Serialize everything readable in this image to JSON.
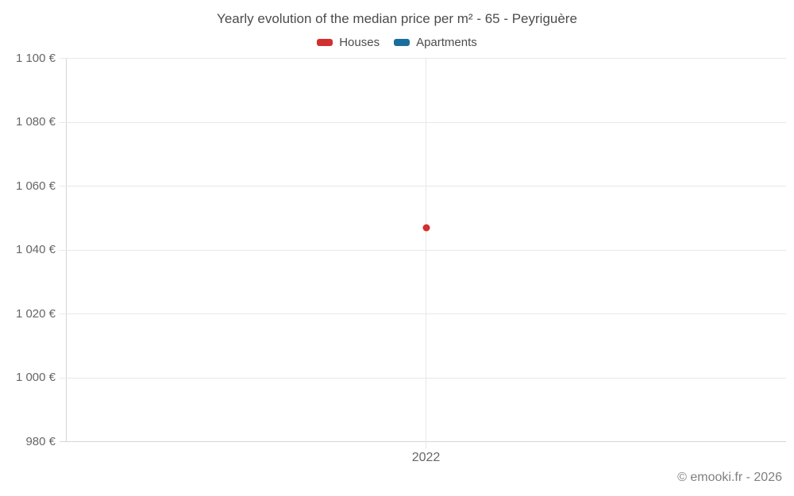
{
  "chart_data": {
    "type": "scatter",
    "title": "Yearly evolution of the median price per m² - 65 - Peyriguère",
    "categories": [
      "2022"
    ],
    "series": [
      {
        "name": "Houses",
        "color": "#d32f2f",
        "values": [
          1047
        ]
      },
      {
        "name": "Apartments",
        "color": "#1a6e9e",
        "values": [
          null
        ]
      }
    ],
    "ylim": [
      980,
      1100
    ],
    "y_ticks": [
      {
        "value": 1100,
        "label": "1 100 €"
      },
      {
        "value": 1080,
        "label": "1 080 €"
      },
      {
        "value": 1060,
        "label": "1 060 €"
      },
      {
        "value": 1040,
        "label": "1 040 €"
      },
      {
        "value": 1020,
        "label": "1 020 €"
      },
      {
        "value": 1000,
        "label": "1 000 €"
      },
      {
        "value": 980,
        "label": "980 €"
      }
    ],
    "xlabel": "",
    "ylabel": "",
    "grid": true,
    "legend_position": "top"
  },
  "footer": {
    "copyright": "© emooki.fr - 2026"
  }
}
